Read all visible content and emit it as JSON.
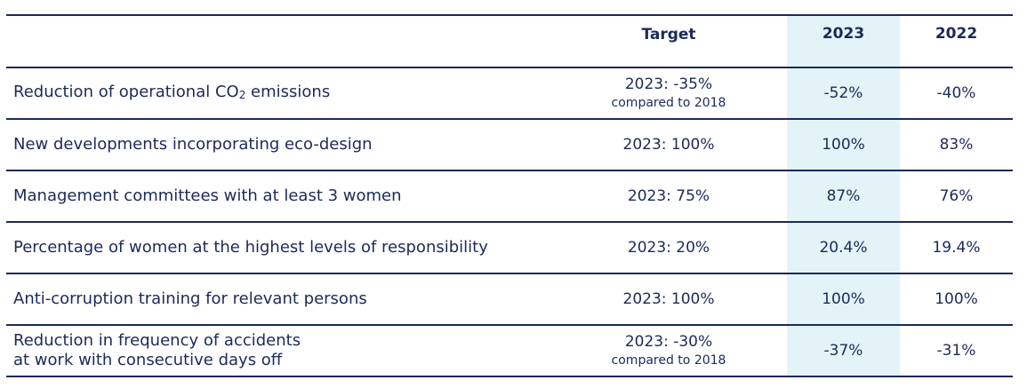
{
  "header": {
    "target": "Target",
    "year_current": "2023",
    "year_previous": "2022"
  },
  "rows": [
    {
      "label_html": "Reduction of operational CO<sub style=\"font-size:12px;vertical-align:-2px\">2</sub> emissions",
      "label": "Reduction of operational CO₂ emissions",
      "target": "2023: -35%",
      "target_note": "compared to 2018",
      "y2023": "-52%",
      "y2022": "-40%"
    },
    {
      "label": "New developments incorporating eco-design",
      "target": "2023: 100%",
      "target_note": "",
      "y2023": "100%",
      "y2022": "83%"
    },
    {
      "label": "Management committees with at least 3 women",
      "target": "2023: 75%",
      "target_note": "",
      "y2023": "87%",
      "y2022": "76%"
    },
    {
      "label": "Percentage of women at the highest levels of responsibility",
      "target": "2023: 20%",
      "target_note": "",
      "y2023": "20.4%",
      "y2022": "19.4%"
    },
    {
      "label": "Anti-corruption training for relevant persons",
      "target": "2023: 100%",
      "target_note": "",
      "y2023": "100%",
      "y2022": "100%"
    },
    {
      "label_line1": "Reduction in frequency of accidents",
      "label_line2": "at work with consecutive days off",
      "target": "2023: -30%",
      "target_note": "compared to 2018",
      "y2023": "-37%",
      "y2022": "-31%"
    }
  ],
  "colors": {
    "text": "#1b2a5a",
    "rule": "#1b2a5a",
    "highlight": "#e4f3f7"
  }
}
